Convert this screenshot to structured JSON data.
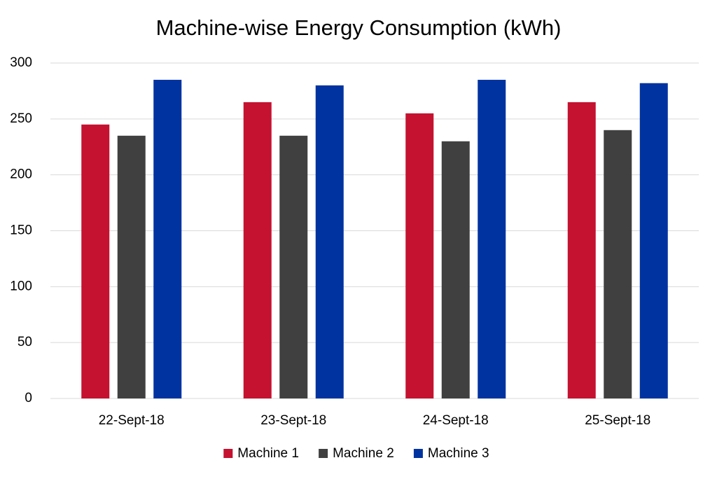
{
  "chart_data": {
    "type": "bar",
    "title": "Machine-wise Energy Consumption (kWh)",
    "categories": [
      "22-Sept-18",
      "23-Sept-18",
      "24-Sept-18",
      "25-Sept-18"
    ],
    "series": [
      {
        "name": "Machine 1",
        "color": "#c41230",
        "values": [
          245,
          265,
          255,
          265
        ]
      },
      {
        "name": "Machine 2",
        "color": "#404040",
        "values": [
          235,
          235,
          230,
          240
        ]
      },
      {
        "name": "Machine 3",
        "color": "#0033a0",
        "values": [
          285,
          280,
          285,
          282
        ]
      }
    ],
    "ylim": [
      0,
      300
    ],
    "yticks": [
      0,
      50,
      100,
      150,
      200,
      250,
      300
    ],
    "grid": true,
    "legend": "bottom"
  }
}
